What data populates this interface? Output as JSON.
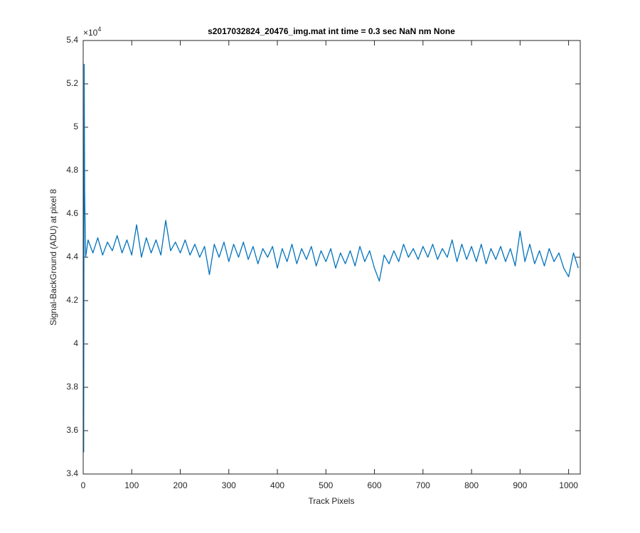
{
  "chart_data": {
    "type": "line",
    "title": "s2017032824_20476_img.mat int time = 0.3 sec  NaN nm None",
    "xlabel": "Track Pixels",
    "ylabel": "Signal-BackGround (ADU) at pixel 8",
    "y_multiplier_base": "×10",
    "y_multiplier_exponent": "4",
    "color": "#0072bd",
    "grid": false,
    "xlim": [
      0,
      1024
    ],
    "ylim": [
      3.4,
      5.4
    ],
    "xticks": [
      0,
      100,
      200,
      300,
      400,
      500,
      600,
      700,
      800,
      900,
      1000
    ],
    "yticks": [
      3.4,
      3.6,
      3.8,
      4,
      4.2,
      4.4,
      4.6,
      4.8,
      5,
      5.2,
      5.4
    ],
    "x": [
      1,
      2,
      3,
      5,
      10,
      20,
      30,
      40,
      50,
      60,
      70,
      80,
      90,
      100,
      110,
      120,
      130,
      140,
      150,
      160,
      170,
      180,
      190,
      200,
      210,
      220,
      230,
      240,
      250,
      260,
      270,
      280,
      290,
      300,
      310,
      320,
      330,
      340,
      350,
      360,
      370,
      380,
      390,
      400,
      410,
      420,
      430,
      440,
      450,
      460,
      470,
      480,
      490,
      500,
      510,
      520,
      530,
      540,
      550,
      560,
      570,
      580,
      590,
      600,
      610,
      620,
      630,
      640,
      650,
      660,
      670,
      680,
      690,
      700,
      710,
      720,
      730,
      740,
      750,
      760,
      770,
      780,
      790,
      800,
      810,
      820,
      830,
      840,
      850,
      860,
      870,
      880,
      890,
      900,
      910,
      920,
      930,
      940,
      950,
      960,
      970,
      980,
      990,
      1000,
      1010,
      1020
    ],
    "values": [
      3.5,
      5.29,
      4.7,
      4.4,
      4.48,
      4.42,
      4.49,
      4.41,
      4.47,
      4.43,
      4.5,
      4.42,
      4.48,
      4.41,
      4.55,
      4.4,
      4.49,
      4.42,
      4.48,
      4.41,
      4.57,
      4.43,
      4.47,
      4.42,
      4.48,
      4.41,
      4.46,
      4.4,
      4.45,
      4.32,
      4.46,
      4.4,
      4.47,
      4.38,
      4.46,
      4.4,
      4.47,
      4.39,
      4.45,
      4.37,
      4.44,
      4.4,
      4.45,
      4.35,
      4.44,
      4.38,
      4.46,
      4.37,
      4.44,
      4.39,
      4.45,
      4.36,
      4.43,
      4.38,
      4.44,
      4.35,
      4.42,
      4.37,
      4.43,
      4.36,
      4.45,
      4.38,
      4.43,
      4.35,
      4.29,
      4.41,
      4.37,
      4.43,
      4.38,
      4.46,
      4.4,
      4.44,
      4.39,
      4.45,
      4.4,
      4.46,
      4.39,
      4.44,
      4.4,
      4.48,
      4.38,
      4.46,
      4.39,
      4.45,
      4.38,
      4.46,
      4.37,
      4.44,
      4.39,
      4.45,
      4.38,
      4.44,
      4.36,
      4.52,
      4.38,
      4.46,
      4.37,
      4.43,
      4.36,
      4.44,
      4.38,
      4.42,
      4.35,
      4.31,
      4.42,
      4.35
    ]
  }
}
